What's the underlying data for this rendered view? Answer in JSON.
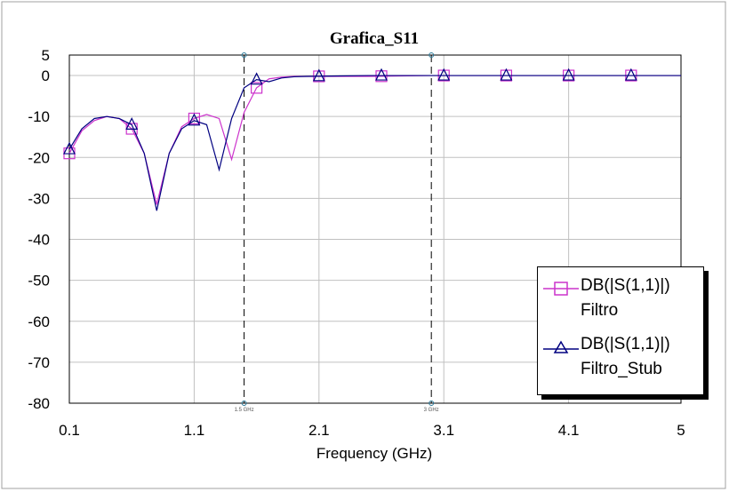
{
  "chart_data": {
    "type": "line",
    "title": "Grafica_S11",
    "xlabel": "Frequency (GHz)",
    "ylabel": "",
    "xlim": [
      0.1,
      5
    ],
    "ylim": [
      -80,
      5
    ],
    "x_ticks": [
      "0.1",
      "1.1",
      "2.1",
      "3.1",
      "4.1",
      "5"
    ],
    "y_ticks": [
      "5",
      "0",
      "-10",
      "-20",
      "-30",
      "-40",
      "-50",
      "-60",
      "-70",
      "-80"
    ],
    "grid": true,
    "legend_position": "bottom-right",
    "markers": [
      {
        "x": 1.5,
        "label": "1.5 GHz"
      },
      {
        "x": 3.0,
        "label": "3 GHz"
      }
    ],
    "series": [
      {
        "name": "DB(|S(1,1)|)",
        "name2": "Filtro",
        "color": "#cc33cc",
        "marker": "square",
        "x": [
          0.1,
          0.2,
          0.3,
          0.4,
          0.5,
          0.6,
          0.7,
          0.8,
          0.9,
          1.0,
          1.1,
          1.2,
          1.3,
          1.4,
          1.5,
          1.6,
          1.7,
          1.8,
          1.9,
          2.0,
          2.5,
          3.0,
          3.5,
          4.0,
          4.5,
          5.0
        ],
        "values": [
          -19,
          -13.5,
          -11,
          -10,
          -10.5,
          -13,
          -19,
          -31.5,
          -19,
          -12.5,
          -10.5,
          -9.5,
          -10.5,
          -20.5,
          -9,
          -3,
          -0.8,
          -0.4,
          -0.2,
          -0.2,
          -0.2,
          0,
          0,
          0,
          0,
          0
        ],
        "marker_x": [
          0.1,
          0.6,
          1.1,
          1.6,
          2.1,
          2.6,
          3.1,
          3.6,
          4.1,
          4.6
        ]
      },
      {
        "name": "DB(|S(1,1)|)",
        "name2": "Filtro_Stub",
        "color": "#000080",
        "marker": "triangle",
        "x": [
          0.1,
          0.2,
          0.3,
          0.4,
          0.5,
          0.6,
          0.7,
          0.8,
          0.9,
          1.0,
          1.1,
          1.2,
          1.3,
          1.4,
          1.5,
          1.6,
          1.7,
          1.8,
          1.9,
          2.0,
          2.5,
          3.0,
          3.5,
          4.0,
          4.5,
          5.0
        ],
        "values": [
          -18,
          -13,
          -10.5,
          -10,
          -10.5,
          -12,
          -19,
          -33,
          -19,
          -13,
          -11,
          -12,
          -23,
          -10.5,
          -3,
          -1,
          -1.5,
          -0.6,
          -0.3,
          -0.2,
          0,
          0,
          0,
          0,
          0,
          0
        ],
        "marker_x": [
          0.1,
          0.6,
          1.1,
          1.6,
          2.1,
          2.6,
          3.1,
          3.6,
          4.1,
          4.6
        ]
      }
    ]
  }
}
